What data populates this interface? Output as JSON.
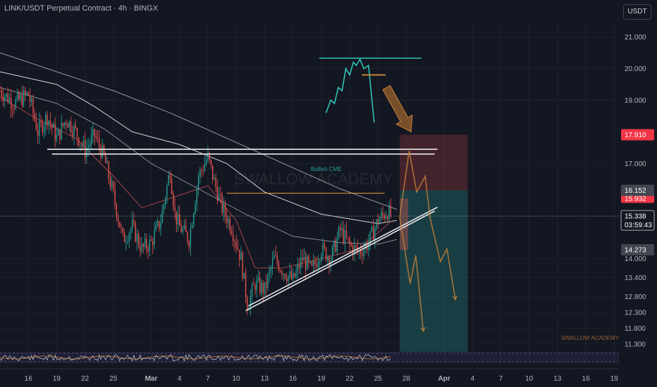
{
  "header": {
    "title": "LINK/USDT Perpetual Contract · 4h · BINGX",
    "currency": "USDT"
  },
  "watermark": "SWALLOW ACADEMY",
  "footer_brand": "SWALLOW ACADEMY",
  "annotations": {
    "cme_label": "Bullish CME"
  },
  "price_badges": {
    "stop": "17.910",
    "entry_top": "16.152",
    "entry_under": "15.932",
    "current": "15.338",
    "countdown": "03:59:43",
    "level": "14.273"
  },
  "colors": {
    "background": "#131722",
    "up": "#26a69a",
    "down": "#ef5350",
    "stop_zone": "#5a2030",
    "target_zone": "#0f4a3f",
    "projection": "#c8823a",
    "trend_line": "#e6e6e6",
    "cyan_sketch": "#2ec4b6"
  },
  "chart_data": {
    "type": "candlestick",
    "title": "LINK/USDT Perpetual Contract · 4h · BINGX",
    "ylim": [
      11.05,
      21.5
    ],
    "y_ticks": [
      "21.000",
      "20.000",
      "19.000",
      "17.000",
      "14.000",
      "13.400",
      "12.800",
      "12.300",
      "11.800",
      "11.300"
    ],
    "y_tick_values": [
      21.0,
      20.0,
      19.0,
      17.0,
      14.0,
      13.4,
      12.8,
      12.3,
      11.8,
      11.3
    ],
    "x_ticks": [
      "16",
      "19",
      "22",
      "25",
      "Mar",
      "4",
      "7",
      "10",
      "13",
      "16",
      "19",
      "22",
      "25",
      "28",
      "Apr",
      "4",
      "7",
      "10",
      "13",
      "16",
      "19"
    ],
    "x_tick_days": [
      -13,
      -10,
      -7,
      -4,
      0,
      3,
      6,
      9,
      12,
      15,
      18,
      21,
      24,
      27,
      31,
      34,
      37,
      40,
      43,
      46,
      49
    ],
    "x_start_day": -16,
    "x_end_day": 49.5,
    "candle_days_per_bar": 0.1667,
    "price_path": [
      [
        -16,
        19.3
      ],
      [
        -14.5,
        18.9
      ],
      [
        -13,
        19.2
      ],
      [
        -12,
        18.0
      ],
      [
        -11,
        18.5
      ],
      [
        -10,
        17.8
      ],
      [
        -9,
        18.4
      ],
      [
        -8,
        18.0
      ],
      [
        -7,
        17.4
      ],
      [
        -6,
        17.9
      ],
      [
        -5,
        17.2
      ],
      [
        -4,
        16.0
      ],
      [
        -3,
        14.6
      ],
      [
        -2,
        15.0
      ],
      [
        -1,
        14.3
      ],
      [
        0,
        14.5
      ],
      [
        1,
        15.2
      ],
      [
        2,
        16.8
      ],
      [
        2.5,
        15.4
      ],
      [
        3,
        15.0
      ],
      [
        4,
        14.6
      ],
      [
        5,
        16.6
      ],
      [
        6,
        17.2
      ],
      [
        6.6,
        16.5
      ],
      [
        7.5,
        15.6
      ],
      [
        8.5,
        15.0
      ],
      [
        9.5,
        14.0
      ],
      [
        10.2,
        12.5
      ],
      [
        11,
        13.2
      ],
      [
        12,
        13.0
      ],
      [
        13,
        14.0
      ],
      [
        14,
        13.6
      ],
      [
        15,
        13.3
      ],
      [
        16,
        14.0
      ],
      [
        17,
        13.6
      ],
      [
        18,
        14.3
      ],
      [
        19,
        14.0
      ],
      [
        20,
        14.9
      ],
      [
        21,
        14.4
      ],
      [
        22,
        14.2
      ],
      [
        23,
        14.5
      ],
      [
        24,
        15.2
      ],
      [
        25,
        15.5
      ],
      [
        25.4,
        15.34
      ]
    ],
    "overlays": {
      "ma_long": [
        [
          -16,
          20.5
        ],
        [
          -10,
          19.9
        ],
        [
          -4,
          19.3
        ],
        [
          2,
          18.6
        ],
        [
          8,
          17.8
        ],
        [
          14,
          17.0
        ],
        [
          20,
          16.2
        ],
        [
          26,
          15.55
        ]
      ],
      "ma_mid": [
        [
          -16,
          19.9
        ],
        [
          -10,
          19.5
        ],
        [
          -6,
          18.8
        ],
        [
          -2,
          18.0
        ],
        [
          3,
          17.6
        ],
        [
          8,
          17.0
        ],
        [
          12,
          16.1
        ],
        [
          18,
          15.4
        ],
        [
          24,
          15.1
        ],
        [
          26,
          15.2
        ]
      ],
      "ma_short": [
        [
          -16,
          19.4
        ],
        [
          -10,
          18.9
        ],
        [
          -5,
          18.1
        ],
        [
          0,
          17.0
        ],
        [
          5,
          16.2
        ],
        [
          10,
          15.4
        ],
        [
          15,
          14.7
        ],
        [
          20,
          14.5
        ],
        [
          24,
          14.45
        ],
        [
          26,
          14.6
        ]
      ],
      "ema_fast": [
        [
          -16,
          19.1
        ],
        [
          -12,
          18.4
        ],
        [
          -8,
          17.8
        ],
        [
          -4,
          16.6
        ],
        [
          -1,
          15.6
        ],
        [
          2,
          15.9
        ],
        [
          6,
          16.3
        ],
        [
          9,
          15.2
        ],
        [
          11,
          13.7
        ],
        [
          14,
          13.7
        ],
        [
          18,
          14.0
        ],
        [
          22,
          14.3
        ],
        [
          25.5,
          15.2
        ]
      ]
    },
    "levels": {
      "resistance_upper": 17.45,
      "resistance_lower": 17.3,
      "cme_gap": 16.06,
      "current_price": 15.338
    },
    "trendlines": [
      {
        "from": [
          10,
          12.35
        ],
        "to": [
          30,
          15.5
        ]
      },
      {
        "from": [
          10.3,
          12.5
        ],
        "to": [
          30.3,
          15.62
        ]
      }
    ],
    "trade_zones": {
      "start_day": 26.3,
      "end_day": 33.5,
      "stop_top": 17.91,
      "entry": 16.152,
      "target": 11.05,
      "left_box": {
        "from_day": 26.3,
        "to_day": 27.2,
        "top": 15.9,
        "bottom": 14.27
      }
    },
    "projections": [
      [
        [
          26.3,
          15.3
        ],
        [
          27.3,
          17.4
        ],
        [
          28.1,
          16.1
        ],
        [
          29.0,
          16.6
        ],
        [
          29.5,
          15.3
        ]
      ],
      [
        [
          26.3,
          15.3
        ],
        [
          27.4,
          13.2
        ],
        [
          28.0,
          14.1
        ],
        [
          28.8,
          11.7
        ]
      ],
      [
        [
          29.5,
          15.3
        ],
        [
          30.6,
          13.9
        ],
        [
          31.3,
          14.3
        ],
        [
          32.2,
          12.7
        ]
      ]
    ],
    "sketch_path": [
      [
        18.5,
        18.6
      ],
      [
        19.0,
        19.0
      ],
      [
        19.4,
        18.9
      ],
      [
        19.8,
        19.4
      ],
      [
        20.2,
        19.3
      ],
      [
        20.6,
        20.0
      ],
      [
        21.0,
        19.8
      ],
      [
        21.4,
        20.2
      ],
      [
        21.7,
        20.1
      ],
      [
        22.1,
        20.3
      ],
      [
        22.5,
        20.0
      ],
      [
        23.0,
        20.1
      ],
      [
        23.6,
        18.3
      ]
    ],
    "sketch_top_line": {
      "from_day": 17.8,
      "to_day": 28.6,
      "value": 20.33
    },
    "sketch_orange_line": {
      "from_day": 22.3,
      "to_day": 24.8,
      "value": 19.8
    },
    "arrow": {
      "from": [
        24.9,
        19.4
      ],
      "to": [
        27.5,
        18.0
      ]
    },
    "rsi_band": {
      "top_label_fraction": 0.2,
      "bottom_label_fraction": 0.8
    }
  }
}
